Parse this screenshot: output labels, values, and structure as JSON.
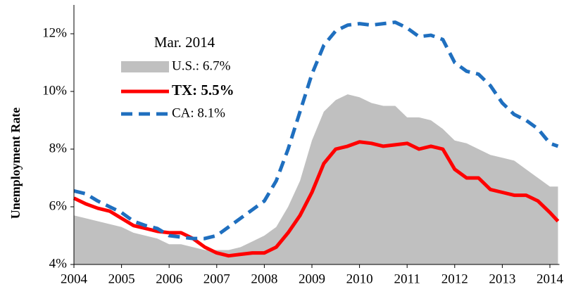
{
  "chart_data": {
    "type": "line",
    "y_label": "Unemployment Rate",
    "legend_title": "Mar. 2014",
    "x": [
      2004,
      2004.25,
      2004.5,
      2004.75,
      2005,
      2005.25,
      2005.5,
      2005.75,
      2006,
      2006.25,
      2006.5,
      2006.75,
      2007,
      2007.25,
      2007.5,
      2007.75,
      2008,
      2008.25,
      2008.5,
      2008.75,
      2009,
      2009.25,
      2009.5,
      2009.75,
      2010,
      2010.25,
      2010.5,
      2010.75,
      2011,
      2011.25,
      2011.5,
      2011.75,
      2012,
      2012.25,
      2012.5,
      2012.75,
      2013,
      2013.25,
      2013.5,
      2013.75,
      2014,
      2014.17
    ],
    "series": [
      {
        "name": "U.S.: 6.7%",
        "style": "area",
        "color": "#c0c0c0",
        "values": [
          5.7,
          5.6,
          5.5,
          5.4,
          5.3,
          5.1,
          5.0,
          4.9,
          4.7,
          4.7,
          4.6,
          4.5,
          4.5,
          4.5,
          4.6,
          4.8,
          5.0,
          5.3,
          6.0,
          6.9,
          8.3,
          9.3,
          9.7,
          9.9,
          9.8,
          9.6,
          9.5,
          9.5,
          9.1,
          9.1,
          9.0,
          8.7,
          8.3,
          8.2,
          8.0,
          7.8,
          7.7,
          7.6,
          7.3,
          7.0,
          6.7,
          6.7
        ]
      },
      {
        "name": "TX: 5.5%",
        "style": "solid",
        "color": "#ff0000",
        "values": [
          6.3,
          6.1,
          5.95,
          5.85,
          5.6,
          5.35,
          5.25,
          5.15,
          5.1,
          5.1,
          4.9,
          4.6,
          4.4,
          4.3,
          4.35,
          4.4,
          4.4,
          4.6,
          5.1,
          5.7,
          6.5,
          7.5,
          8.0,
          8.1,
          8.25,
          8.2,
          8.1,
          8.15,
          8.2,
          8.0,
          8.1,
          8.0,
          7.3,
          7.0,
          7.0,
          6.6,
          6.5,
          6.4,
          6.4,
          6.2,
          5.8,
          5.5
        ]
      },
      {
        "name": "CA: 8.1%",
        "style": "dashed",
        "color": "#1f6fbf",
        "values": [
          6.55,
          6.45,
          6.2,
          6.0,
          5.8,
          5.5,
          5.35,
          5.25,
          5.0,
          4.95,
          4.9,
          4.9,
          5.0,
          5.3,
          5.6,
          5.9,
          6.2,
          6.9,
          8.0,
          9.3,
          10.6,
          11.6,
          12.1,
          12.3,
          12.35,
          12.3,
          12.35,
          12.4,
          12.2,
          11.9,
          11.95,
          11.8,
          11.0,
          10.7,
          10.6,
          10.2,
          9.6,
          9.2,
          9.0,
          8.7,
          8.2,
          8.1
        ]
      }
    ],
    "xlim": [
      2004,
      2014.2
    ],
    "xticks": [
      2004,
      2005,
      2006,
      2007,
      2008,
      2009,
      2010,
      2011,
      2012,
      2013,
      2014
    ],
    "ylim": [
      4,
      13
    ],
    "yticks": [
      {
        "value": 4,
        "label": "4%"
      },
      {
        "value": 6,
        "label": "6%"
      },
      {
        "value": 8,
        "label": "8%"
      },
      {
        "value": 10,
        "label": "10%"
      },
      {
        "value": 12,
        "label": "12%"
      }
    ]
  }
}
